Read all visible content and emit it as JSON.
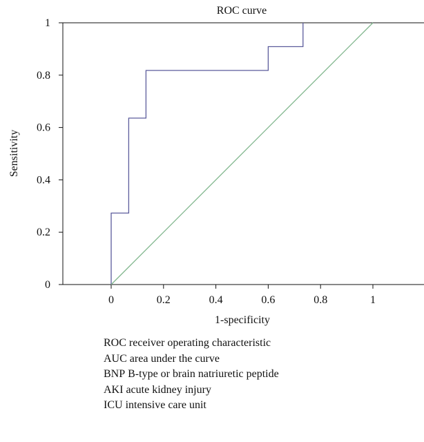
{
  "chart_data": {
    "type": "line",
    "title": "ROC curve",
    "xlabel": "1-specificity",
    "ylabel": "Sensitivity",
    "xlim": [
      -0.2,
      1.2
    ],
    "ylim": [
      0,
      1
    ],
    "xticks": [
      0,
      0.2,
      0.4,
      0.6,
      0.8,
      1
    ],
    "xtick_labels": [
      "0",
      "0.2",
      "0.4",
      "0.6",
      "0.8",
      "1"
    ],
    "yticks": [
      0,
      0.2,
      0.4,
      0.6,
      0.8,
      1
    ],
    "ytick_labels": [
      "0",
      "0.2",
      "0.4",
      "0.6",
      "0.8",
      "1"
    ],
    "grid": false,
    "series": [
      {
        "color": "#5b5b9c",
        "x": [
          0,
          0,
          0.067,
          0.067,
          0.133,
          0.133,
          0.6,
          0.6,
          0.733,
          0.733
        ],
        "y": [
          0,
          0.273,
          0.273,
          0.636,
          0.636,
          0.818,
          0.818,
          0.909,
          0.909,
          1
        ]
      },
      {
        "color": "#7fb58c",
        "x": [
          0,
          1
        ],
        "y": [
          0,
          1
        ]
      }
    ]
  },
  "footnotes": [
    {
      "abbr": "ROC",
      "text": "receiver operating characteristic"
    },
    {
      "abbr": "AUC",
      "text": "area under the curve"
    },
    {
      "abbr": "BNP",
      "text": "B-type or brain natriuretic peptide"
    },
    {
      "abbr": "AKI",
      "text": "acute kidney injury"
    },
    {
      "abbr": "ICU",
      "text": "intensive care unit"
    }
  ]
}
